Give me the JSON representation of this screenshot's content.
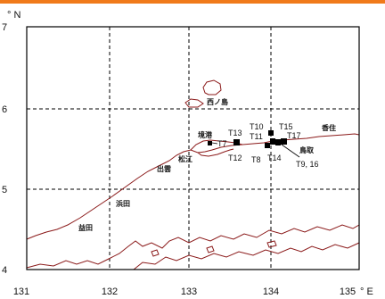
{
  "map": {
    "colors": {
      "coast": "#8b1a1a",
      "frame": "#000000",
      "grid": "#000000",
      "marker": "#000000",
      "topbar": "#f07a1a"
    },
    "axes": {
      "lon_ticks": [
        "131",
        "132",
        "133",
        "134",
        "135"
      ],
      "lon_last_suffix": "° E",
      "lat_ticks": [
        "7",
        "6",
        "5",
        "4"
      ],
      "lat_top_suffix": "° N"
    },
    "places": {
      "nishinoshima": "西ノ島",
      "sakaiminato": "境港",
      "matsue": "松江",
      "izumo": "出雲",
      "hamada": "浜田",
      "masuda": "益田",
      "tottori": "鳥取",
      "kasumi": "香住"
    },
    "stations": {
      "t7": "T7",
      "t8": "T8",
      "t9_16": "T9, 16",
      "t10": "T10",
      "t11": "T11",
      "t12": "T12",
      "t13": "T13",
      "t14": "T14",
      "t15": "T15",
      "t17": "T17"
    }
  }
}
